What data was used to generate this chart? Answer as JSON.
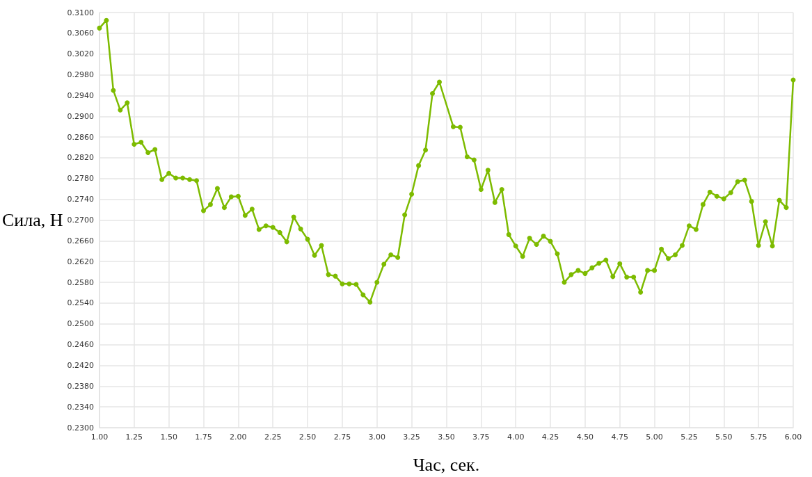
{
  "chart_data": {
    "type": "line",
    "xlabel": "Час, сек.",
    "ylabel": "Сила, Н",
    "grid": true,
    "marker": "circle",
    "line_style": "solid",
    "xlim": [
      1,
      6
    ],
    "ylim": [
      0.23,
      0.31
    ],
    "xticks": [
      {
        "value": 1,
        "label": "1.00"
      },
      {
        "value": 1.25,
        "label": "1.25"
      },
      {
        "value": 1.5,
        "label": "1.50"
      },
      {
        "value": 1.75,
        "label": "1.75"
      },
      {
        "value": 2,
        "label": "2.00"
      },
      {
        "value": 2.25,
        "label": "2.25"
      },
      {
        "value": 2.5,
        "label": "2.50"
      },
      {
        "value": 2.75,
        "label": "2.75"
      },
      {
        "value": 3,
        "label": "3.00"
      },
      {
        "value": 3.25,
        "label": "3.25"
      },
      {
        "value": 3.5,
        "label": "3.50"
      },
      {
        "value": 3.75,
        "label": "3.75"
      },
      {
        "value": 4,
        "label": "4.00"
      },
      {
        "value": 4.25,
        "label": "4.25"
      },
      {
        "value": 4.5,
        "label": "4.50"
      },
      {
        "value": 4.75,
        "label": "4.75"
      },
      {
        "value": 5,
        "label": "5.00"
      },
      {
        "value": 5.25,
        "label": "5.25"
      },
      {
        "value": 5.5,
        "label": "5.50"
      },
      {
        "value": 5.75,
        "label": "5.75"
      },
      {
        "value": 6,
        "label": "6.00"
      }
    ],
    "yticks": [
      {
        "value": 0.23,
        "label": "0.2300"
      },
      {
        "value": 0.234,
        "label": "0.2340"
      },
      {
        "value": 0.238,
        "label": "0.2380"
      },
      {
        "value": 0.242,
        "label": "0.2420"
      },
      {
        "value": 0.246,
        "label": "0.2460"
      },
      {
        "value": 0.25,
        "label": "0.2500"
      },
      {
        "value": 0.254,
        "label": "0.2540"
      },
      {
        "value": 0.258,
        "label": "0.2580"
      },
      {
        "value": 0.262,
        "label": "0.2620"
      },
      {
        "value": 0.266,
        "label": "0.2660"
      },
      {
        "value": 0.27,
        "label": "0.2700"
      },
      {
        "value": 0.274,
        "label": "0.2740"
      },
      {
        "value": 0.278,
        "label": "0.2780"
      },
      {
        "value": 0.282,
        "label": "0.2820"
      },
      {
        "value": 0.286,
        "label": "0.2860"
      },
      {
        "value": 0.29,
        "label": "0.2900"
      },
      {
        "value": 0.294,
        "label": "0.2940"
      },
      {
        "value": 0.298,
        "label": "0.2980"
      },
      {
        "value": 0.302,
        "label": "0.3020"
      },
      {
        "value": 0.306,
        "label": "0.3060"
      },
      {
        "value": 0.31,
        "label": "0.3100"
      }
    ],
    "series": [
      {
        "color": "#7dbb00",
        "x": [
          1,
          1.05,
          1.1,
          1.15,
          1.2,
          1.25,
          1.3,
          1.35,
          1.4,
          1.45,
          1.5,
          1.55,
          1.6,
          1.65,
          1.7,
          1.75,
          1.8,
          1.85,
          1.9,
          1.95,
          2,
          2.05,
          2.1,
          2.15,
          2.2,
          2.25,
          2.3,
          2.35,
          2.4,
          2.45,
          2.5,
          2.55,
          2.6,
          2.65,
          2.7,
          2.75,
          2.8,
          2.85,
          2.9,
          2.95,
          3,
          3.05,
          3.1,
          3.15,
          3.2,
          3.25,
          3.3,
          3.35,
          3.4,
          3.45,
          3.55,
          3.6,
          3.65,
          3.7,
          3.75,
          3.8,
          3.85,
          3.9,
          3.95,
          4,
          4.05,
          4.1,
          4.15,
          4.2,
          4.25,
          4.3,
          4.35,
          4.4,
          4.45,
          4.5,
          4.55,
          4.6,
          4.65,
          4.7,
          4.75,
          4.8,
          4.85,
          4.9,
          4.95,
          5,
          5.05,
          5.1,
          5.15,
          5.2,
          5.25,
          5.3,
          5.35,
          5.4,
          5.45,
          5.5,
          5.55,
          5.6,
          5.65,
          5.7,
          5.75,
          5.8,
          5.85,
          5.9,
          5.95,
          6
        ],
        "values": [
          0.307,
          0.3085,
          0.295,
          0.2912,
          0.2926,
          0.2846,
          0.285,
          0.283,
          0.2836,
          0.2778,
          0.279,
          0.2781,
          0.2781,
          0.2778,
          0.2776,
          0.2718,
          0.273,
          0.2761,
          0.2724,
          0.2745,
          0.2746,
          0.2709,
          0.2721,
          0.2682,
          0.2689,
          0.2686,
          0.2676,
          0.2658,
          0.2706,
          0.2683,
          0.2663,
          0.2632,
          0.2651,
          0.2595,
          0.2592,
          0.2577,
          0.2577,
          0.2576,
          0.2556,
          0.2542,
          0.258,
          0.2615,
          0.2633,
          0.2628,
          0.271,
          0.275,
          0.2805,
          0.2835,
          0.2944,
          0.2966,
          0.288,
          0.2879,
          0.2822,
          0.2816,
          0.2759,
          0.2796,
          0.2734,
          0.2759,
          0.2672,
          0.265,
          0.263,
          0.2665,
          0.2653,
          0.2669,
          0.2659,
          0.2635,
          0.258,
          0.2595,
          0.2603,
          0.2597,
          0.2608,
          0.2617,
          0.2623,
          0.2591,
          0.2616,
          0.259,
          0.259,
          0.2561,
          0.2603,
          0.2603,
          0.2644,
          0.2626,
          0.2633,
          0.2651,
          0.2689,
          0.2682,
          0.273,
          0.2754,
          0.2746,
          0.2741,
          0.2753,
          0.2774,
          0.2777,
          0.2736,
          0.2651,
          0.2697,
          0.265,
          0.2738,
          0.2724,
          0.297
        ]
      }
    ]
  }
}
